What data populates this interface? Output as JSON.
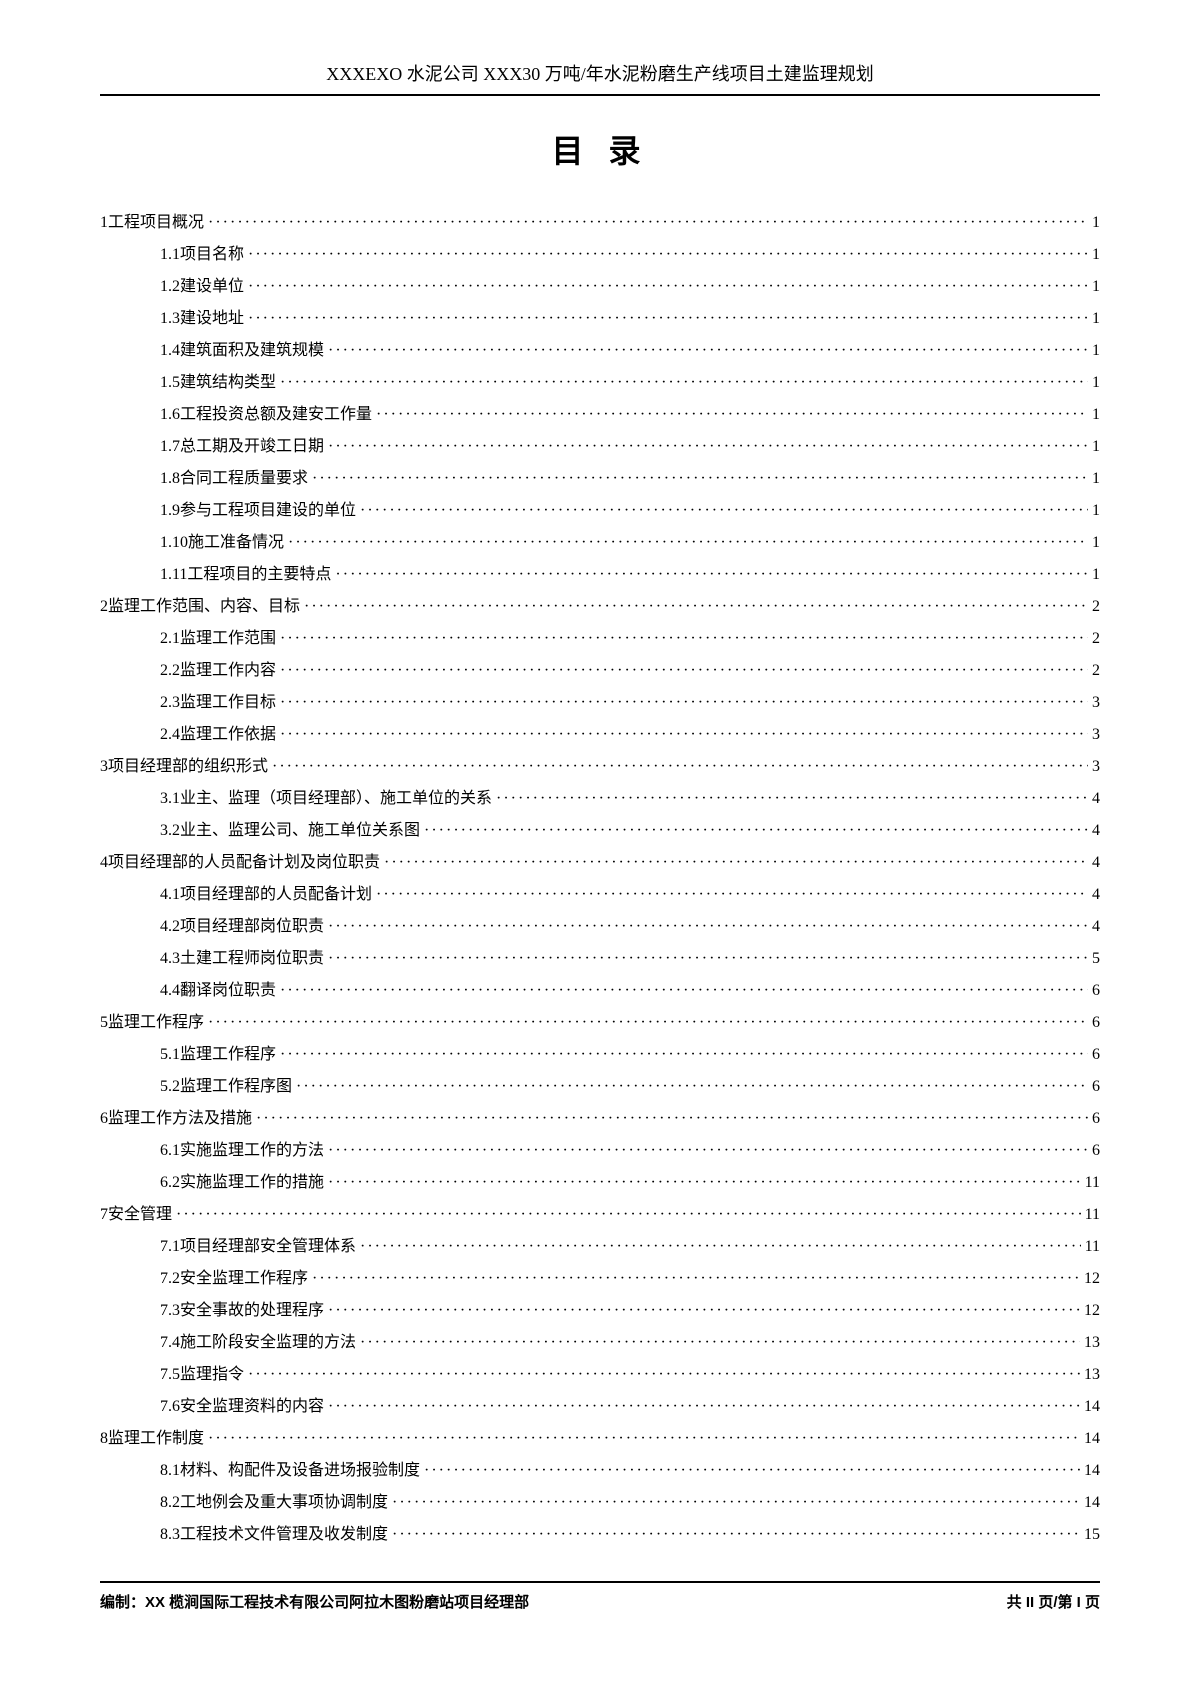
{
  "header": {
    "title": "XXXEXO 水泥公司 XXX30 万吨/年水泥粉磨生产线项目土建监理规划"
  },
  "toc_title": "目 录",
  "toc": [
    {
      "level": 1,
      "num": "1",
      "text": "工程项目概况",
      "page": "1"
    },
    {
      "level": 2,
      "num": "1.1",
      "text": "项目名称",
      "page": "1"
    },
    {
      "level": 2,
      "num": "1.2",
      "text": "建设单位",
      "page": "1"
    },
    {
      "level": 2,
      "num": "1.3",
      "text": "建设地址",
      "page": "1"
    },
    {
      "level": 2,
      "num": "1.4",
      "text": "建筑面积及建筑规模",
      "page": "1"
    },
    {
      "level": 2,
      "num": "1.5",
      "text": "建筑结构类型",
      "page": "1"
    },
    {
      "level": 2,
      "num": "1.6",
      "text": "工程投资总额及建安工作量",
      "page": "1"
    },
    {
      "level": 2,
      "num": "1.7",
      "text": "总工期及开竣工日期",
      "page": "1"
    },
    {
      "level": 2,
      "num": "1.8",
      "text": "合同工程质量要求",
      "page": "1"
    },
    {
      "level": 2,
      "num": "1.9",
      "text": "参与工程项目建设的单位",
      "page": "1"
    },
    {
      "level": 2,
      "num": "1.10",
      "text": "施工准备情况",
      "page": "1"
    },
    {
      "level": 2,
      "num": "1.11",
      "text": "工程项目的主要特点",
      "page": "1"
    },
    {
      "level": 1,
      "num": "2",
      "text": "监理工作范围、内容、目标",
      "page": "2"
    },
    {
      "level": 2,
      "num": "2.1",
      "text": "监理工作范围",
      "page": "2"
    },
    {
      "level": 2,
      "num": "2.2",
      "text": "监理工作内容",
      "page": "2"
    },
    {
      "level": 2,
      "num": "2.3",
      "text": "监理工作目标",
      "page": "3"
    },
    {
      "level": 2,
      "num": "2.4",
      "text": "监理工作依据",
      "page": "3"
    },
    {
      "level": 1,
      "num": "3",
      "text": "项目经理部的组织形式",
      "page": "3"
    },
    {
      "level": 2,
      "num": "3.1",
      "text": "业主、监理（项目经理部）、施工单位的关系",
      "page": "4"
    },
    {
      "level": 2,
      "num": "3.2",
      "text": "业主、监理公司、施工单位关系图",
      "page": "4"
    },
    {
      "level": 1,
      "num": "4",
      "text": "项目经理部的人员配备计划及岗位职责",
      "page": "4"
    },
    {
      "level": 2,
      "num": "4.1",
      "text": "项目经理部的人员配备计划",
      "page": "4"
    },
    {
      "level": 2,
      "num": "4.2",
      "text": "项目经理部岗位职责",
      "page": "4"
    },
    {
      "level": 2,
      "num": "4.3",
      "text": "土建工程师岗位职责",
      "page": "5"
    },
    {
      "level": 2,
      "num": "4.4",
      "text": "翻译岗位职责",
      "page": "6"
    },
    {
      "level": 1,
      "num": "5",
      "text": "监理工作程序",
      "page": "6"
    },
    {
      "level": 2,
      "num": "5.1",
      "text": "监理工作程序",
      "page": "6"
    },
    {
      "level": 2,
      "num": "5.2",
      "text": "监理工作程序图",
      "page": "6"
    },
    {
      "level": 1,
      "num": "6",
      "text": "监理工作方法及措施",
      "page": "6"
    },
    {
      "level": 2,
      "num": "6.1",
      "text": "实施监理工作的方法",
      "page": "6"
    },
    {
      "level": 2,
      "num": "6.2",
      "text": "实施监理工作的措施",
      "page": "11"
    },
    {
      "level": 1,
      "num": "7",
      "text": "安全管理",
      "page": "11"
    },
    {
      "level": 2,
      "num": "7.1",
      "text": "项目经理部安全管理体系",
      "page": "11"
    },
    {
      "level": 2,
      "num": "7.2",
      "text": "安全监理工作程序",
      "page": "12"
    },
    {
      "level": 2,
      "num": "7.3",
      "text": "安全事故的处理程序",
      "page": "12"
    },
    {
      "level": 2,
      "num": "7.4",
      "text": "施工阶段安全监理的方法",
      "page": "13"
    },
    {
      "level": 2,
      "num": "7.5",
      "text": "监理指令",
      "page": "13"
    },
    {
      "level": 2,
      "num": "7.6",
      "text": "安全监理资料的内容",
      "page": "14"
    },
    {
      "level": 1,
      "num": "8",
      "text": "监理工作制度",
      "page": "14"
    },
    {
      "level": 2,
      "num": "8.1",
      "text": "材料、构配件及设备进场报验制度",
      "page": "14"
    },
    {
      "level": 2,
      "num": "8.2",
      "text": "工地例会及重大事项协调制度",
      "page": "14"
    },
    {
      "level": 2,
      "num": "8.3",
      "text": "工程技术文件管理及收发制度",
      "page": "15"
    }
  ],
  "footer": {
    "left": "编制：XX 榄涧国际工程技术有限公司阿拉木图粉磨站项目经理部",
    "right": "共 II 页/第 I 页"
  }
}
